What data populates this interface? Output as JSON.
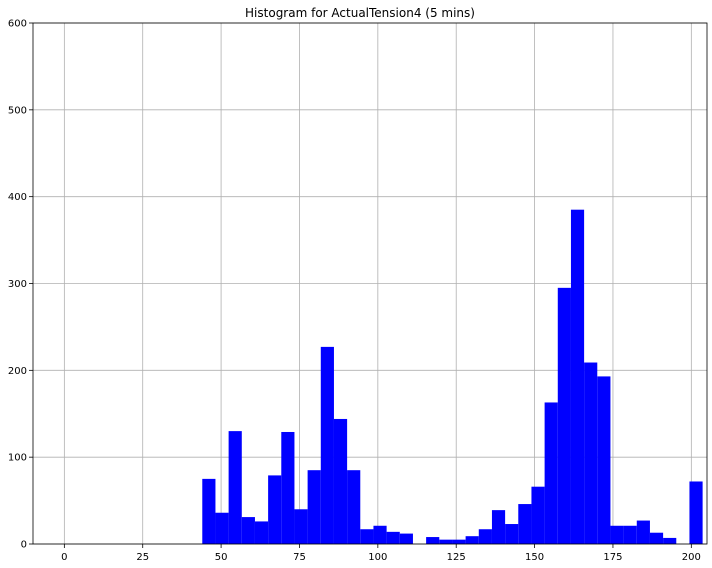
{
  "chart_data": {
    "type": "bar",
    "title": "Histogram for ActualTension4 (5 mins)",
    "xlabel": "",
    "ylabel": "",
    "xlim": [
      -10,
      205
    ],
    "ylim": [
      0,
      600
    ],
    "grid": true,
    "bar_color": "#0000ff",
    "x_ticks": [
      0,
      25,
      50,
      75,
      100,
      125,
      150,
      175,
      200
    ],
    "y_ticks": [
      0,
      100,
      200,
      300,
      400,
      500,
      600
    ],
    "bins": [
      {
        "x0": 44.0,
        "x1": 48.2,
        "count": 75
      },
      {
        "x0": 48.2,
        "x1": 52.4,
        "count": 36
      },
      {
        "x0": 52.4,
        "x1": 56.6,
        "count": 130
      },
      {
        "x0": 56.6,
        "x1": 60.8,
        "count": 31
      },
      {
        "x0": 60.8,
        "x1": 65.0,
        "count": 26
      },
      {
        "x0": 65.0,
        "x1": 69.2,
        "count": 79
      },
      {
        "x0": 69.2,
        "x1": 73.4,
        "count": 129
      },
      {
        "x0": 73.4,
        "x1": 77.6,
        "count": 40
      },
      {
        "x0": 77.6,
        "x1": 81.8,
        "count": 85
      },
      {
        "x0": 81.8,
        "x1": 86.0,
        "count": 227
      },
      {
        "x0": 86.0,
        "x1": 90.2,
        "count": 144
      },
      {
        "x0": 90.2,
        "x1": 94.4,
        "count": 85
      },
      {
        "x0": 94.4,
        "x1": 98.6,
        "count": 17
      },
      {
        "x0": 98.6,
        "x1": 102.8,
        "count": 21
      },
      {
        "x0": 102.8,
        "x1": 107.0,
        "count": 14
      },
      {
        "x0": 107.0,
        "x1": 111.2,
        "count": 12
      },
      {
        "x0": 111.2,
        "x1": 115.4,
        "count": 0
      },
      {
        "x0": 115.4,
        "x1": 119.6,
        "count": 8
      },
      {
        "x0": 119.6,
        "x1": 123.8,
        "count": 5
      },
      {
        "x0": 123.8,
        "x1": 128.0,
        "count": 5
      },
      {
        "x0": 128.0,
        "x1": 132.2,
        "count": 9
      },
      {
        "x0": 132.2,
        "x1": 136.4,
        "count": 17
      },
      {
        "x0": 136.4,
        "x1": 140.6,
        "count": 39
      },
      {
        "x0": 140.6,
        "x1": 144.8,
        "count": 23
      },
      {
        "x0": 144.8,
        "x1": 149.0,
        "count": 46
      },
      {
        "x0": 149.0,
        "x1": 153.2,
        "count": 66
      },
      {
        "x0": 153.2,
        "x1": 157.4,
        "count": 163
      },
      {
        "x0": 157.4,
        "x1": 161.6,
        "count": 295
      },
      {
        "x0": 161.6,
        "x1": 165.8,
        "count": 385
      },
      {
        "x0": 165.8,
        "x1": 170.0,
        "count": 209
      },
      {
        "x0": 170.0,
        "x1": 174.2,
        "count": 193
      },
      {
        "x0": 174.2,
        "x1": 178.4,
        "count": 21
      },
      {
        "x0": 178.4,
        "x1": 182.6,
        "count": 21
      },
      {
        "x0": 182.6,
        "x1": 186.8,
        "count": 27
      },
      {
        "x0": 186.8,
        "x1": 191.0,
        "count": 13
      },
      {
        "x0": 191.0,
        "x1": 195.2,
        "count": 7
      },
      {
        "x0": 195.2,
        "x1": 199.4,
        "count": 0
      },
      {
        "x0": 199.4,
        "x1": 203.6,
        "count": 72
      }
    ]
  }
}
